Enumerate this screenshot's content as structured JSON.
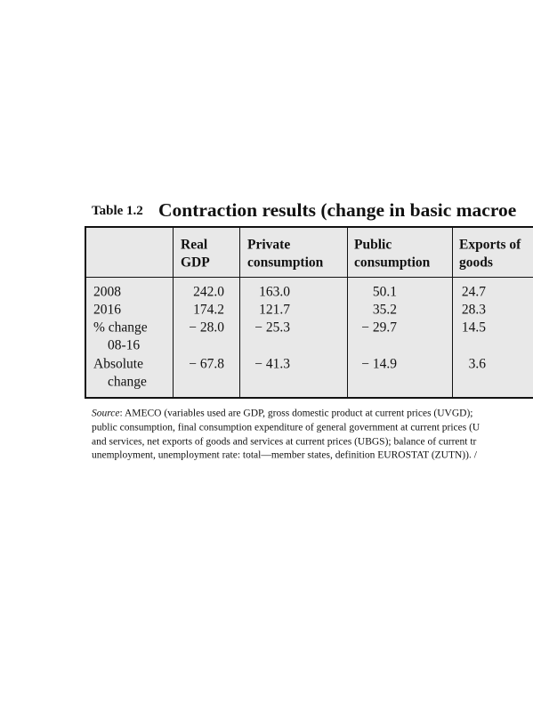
{
  "table_label": "Table 1.2",
  "title": "Contraction results (change in basic macroe",
  "table": {
    "header": [
      "",
      [
        "Real",
        "GDP"
      ],
      [
        "Private",
        "consumption"
      ],
      [
        "Public",
        "consumption"
      ],
      [
        "Exports of",
        "goods"
      ]
    ],
    "rows": [
      {
        "label": [
          "2008"
        ],
        "values": [
          "242.0",
          "163.0",
          "50.1",
          "24.7"
        ]
      },
      {
        "label": [
          "2016"
        ],
        "values": [
          "174.2",
          "121.7",
          "35.2",
          "28.3"
        ]
      },
      {
        "label": [
          "% change",
          "08-16"
        ],
        "values": [
          "− 28.0",
          "− 25.3",
          "− 29.7",
          "14.5"
        ]
      },
      {
        "label": [
          "Absolute",
          "change"
        ],
        "values": [
          "− 67.8",
          "− 41.3",
          "− 14.9",
          "3.6"
        ]
      }
    ]
  },
  "source": {
    "label": "Source",
    "lines": [
      ": AMECO (variables used are GDP, gross domestic product at current prices (UVGD);",
      "public consumption, final consumption expenditure of general government at current prices (U",
      "and services, net exports of goods and services at current prices (UBGS); balance of current tr",
      "unemployment, unemployment rate: total—member states, definition EUROSTAT (ZUTN)). /"
    ]
  }
}
